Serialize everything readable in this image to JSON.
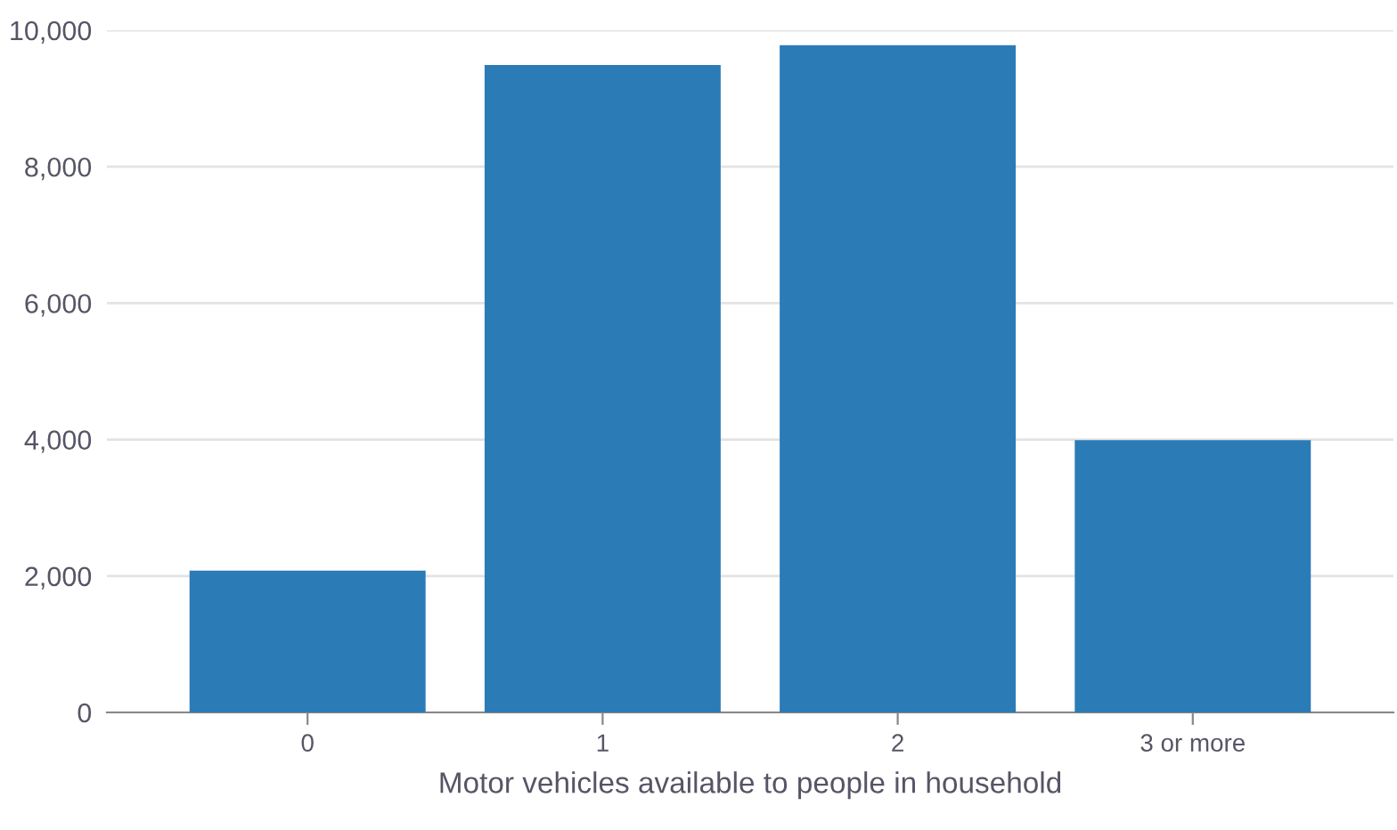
{
  "chart_data": {
    "type": "bar",
    "xlabel": "Motor vehicles available to people in household",
    "categories": [
      "0",
      "1",
      "2",
      "3 or more"
    ],
    "values": [
      2080,
      9490,
      9780,
      3990
    ],
    "color": "#2b7bb6",
    "ylim": [
      0,
      10000
    ],
    "yticks": [
      {
        "value": 0,
        "label": "0"
      },
      {
        "value": 2000,
        "label": "2,000"
      },
      {
        "value": 4000,
        "label": "4,000"
      },
      {
        "value": 6000,
        "label": "6,000"
      },
      {
        "value": 8000,
        "label": "8,000"
      },
      {
        "value": 10000,
        "label": "10,000"
      }
    ],
    "grid": "y",
    "legend": false
  }
}
